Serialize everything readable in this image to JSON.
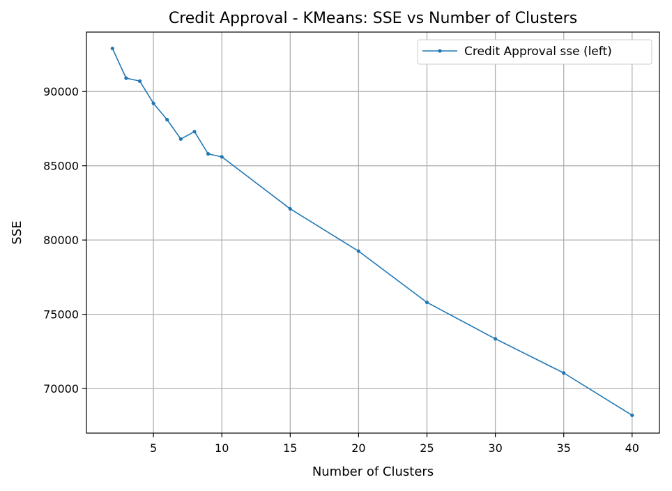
{
  "chart_data": {
    "type": "line",
    "title": "Credit Approval - KMeans: SSE vs Number of Clusters",
    "xlabel": "Number of Clusters",
    "ylabel": "SSE",
    "xlim": [
      0.1,
      42
    ],
    "ylim": [
      67000,
      94000
    ],
    "xticks": [
      5,
      10,
      15,
      20,
      25,
      30,
      35,
      40
    ],
    "yticks": [
      70000,
      75000,
      80000,
      85000,
      90000
    ],
    "grid": true,
    "legend_position": "upper right",
    "series": [
      {
        "name": "Credit Approval sse (left)",
        "color": "#1f77b4",
        "marker": "circle",
        "x": [
          2,
          3,
          4,
          5,
          6,
          7,
          8,
          9,
          10,
          15,
          20,
          25,
          30,
          35,
          40
        ],
        "y": [
          92900,
          90900,
          90700,
          89200,
          88100,
          86800,
          87300,
          85800,
          85600,
          82100,
          79250,
          75800,
          73350,
          71050,
          68200
        ]
      }
    ]
  }
}
